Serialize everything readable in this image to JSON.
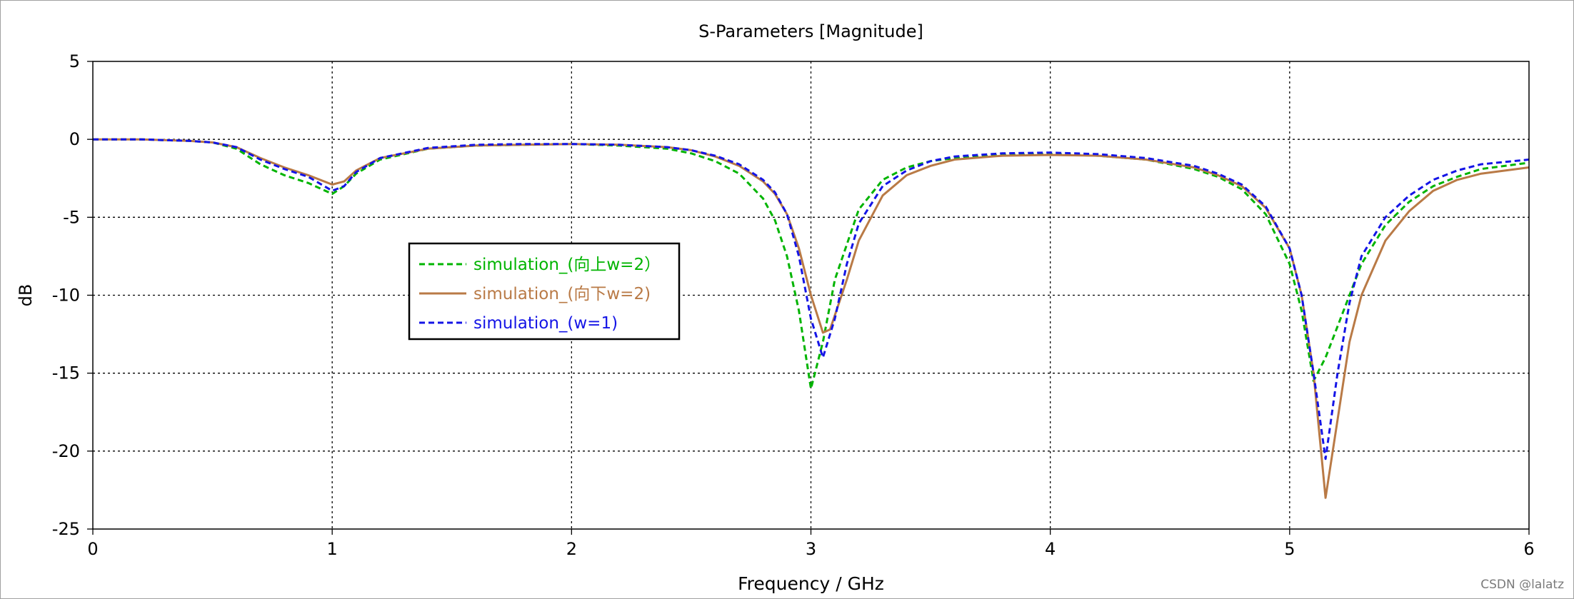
{
  "watermark": "CSDN @lalatz",
  "chart_data": {
    "type": "line",
    "title": "S-Parameters [Magnitude]",
    "xlabel": "Frequency / GHz",
    "ylabel": "dB",
    "xlim": [
      0,
      6
    ],
    "ylim": [
      -25,
      5
    ],
    "x_ticks": [
      0,
      1,
      2,
      3,
      4,
      5,
      6
    ],
    "y_ticks": [
      5,
      0,
      -5,
      -10,
      -15,
      -20,
      -25
    ],
    "grid": true,
    "legend_position": "center-left",
    "series": [
      {
        "name": "simulation_(向上w=2）",
        "color": "#00b400",
        "dash": "dashed",
        "x": [
          0,
          0.2,
          0.4,
          0.5,
          0.6,
          0.7,
          0.8,
          0.9,
          1.0,
          1.05,
          1.1,
          1.2,
          1.4,
          1.6,
          1.8,
          2.0,
          2.2,
          2.4,
          2.5,
          2.6,
          2.7,
          2.8,
          2.85,
          2.9,
          2.95,
          3.0,
          3.05,
          3.1,
          3.2,
          3.3,
          3.4,
          3.5,
          3.6,
          3.8,
          4.0,
          4.2,
          4.4,
          4.6,
          4.7,
          4.8,
          4.9,
          5.0,
          5.05,
          5.1,
          5.15,
          5.2,
          5.3,
          5.4,
          5.5,
          5.6,
          5.7,
          5.8,
          6.0
        ],
        "y": [
          0,
          0,
          -0.1,
          -0.2,
          -0.6,
          -1.6,
          -2.3,
          -2.8,
          -3.5,
          -3.0,
          -2.2,
          -1.3,
          -0.6,
          -0.4,
          -0.35,
          -0.3,
          -0.4,
          -0.6,
          -0.9,
          -1.4,
          -2.2,
          -3.8,
          -5.2,
          -7.5,
          -11.0,
          -16.0,
          -13.0,
          -9.0,
          -4.5,
          -2.6,
          -1.8,
          -1.4,
          -1.2,
          -1.0,
          -0.95,
          -1.05,
          -1.3,
          -1.9,
          -2.4,
          -3.2,
          -4.8,
          -8.0,
          -11.0,
          -15.5,
          -14.0,
          -12.0,
          -8.0,
          -5.5,
          -4.0,
          -3.0,
          -2.4,
          -1.9,
          -1.5
        ]
      },
      {
        "name": "simulation_(向下w=2)",
        "color": "#b97a46",
        "dash": "solid",
        "x": [
          0,
          0.2,
          0.4,
          0.5,
          0.6,
          0.7,
          0.8,
          0.9,
          1.0,
          1.05,
          1.1,
          1.2,
          1.4,
          1.6,
          1.8,
          2.0,
          2.2,
          2.4,
          2.5,
          2.6,
          2.7,
          2.8,
          2.85,
          2.9,
          2.95,
          3.0,
          3.05,
          3.08,
          3.15,
          3.2,
          3.3,
          3.4,
          3.5,
          3.6,
          3.8,
          4.0,
          4.2,
          4.4,
          4.6,
          4.7,
          4.8,
          4.9,
          5.0,
          5.05,
          5.1,
          5.15,
          5.2,
          5.25,
          5.3,
          5.4,
          5.5,
          5.6,
          5.7,
          5.8,
          6.0
        ],
        "y": [
          0,
          0,
          -0.1,
          -0.2,
          -0.5,
          -1.2,
          -1.8,
          -2.3,
          -2.9,
          -2.7,
          -2.0,
          -1.2,
          -0.6,
          -0.4,
          -0.35,
          -0.3,
          -0.35,
          -0.5,
          -0.7,
          -1.1,
          -1.7,
          -2.7,
          -3.5,
          -4.8,
          -7.0,
          -10.0,
          -12.4,
          -12.2,
          -9.0,
          -6.5,
          -3.6,
          -2.3,
          -1.7,
          -1.3,
          -1.05,
          -1.0,
          -1.05,
          -1.3,
          -1.8,
          -2.3,
          -3.0,
          -4.4,
          -7.0,
          -10.0,
          -15.0,
          -23.0,
          -18.0,
          -13.0,
          -10.0,
          -6.5,
          -4.6,
          -3.3,
          -2.6,
          -2.2,
          -1.8
        ]
      },
      {
        "name": "simulation_(w=1)",
        "color": "#1414e6",
        "dash": "dashed",
        "x": [
          0,
          0.2,
          0.4,
          0.5,
          0.6,
          0.7,
          0.8,
          0.9,
          1.0,
          1.05,
          1.1,
          1.2,
          1.4,
          1.6,
          1.8,
          2.0,
          2.2,
          2.4,
          2.5,
          2.6,
          2.7,
          2.8,
          2.85,
          2.9,
          2.95,
          3.0,
          3.05,
          3.1,
          3.15,
          3.2,
          3.3,
          3.4,
          3.5,
          3.6,
          3.8,
          4.0,
          4.2,
          4.4,
          4.6,
          4.7,
          4.8,
          4.9,
          5.0,
          5.05,
          5.1,
          5.15,
          5.2,
          5.25,
          5.3,
          5.4,
          5.5,
          5.6,
          5.7,
          5.8,
          6.0
        ],
        "y": [
          0,
          0,
          -0.1,
          -0.2,
          -0.5,
          -1.3,
          -1.9,
          -2.4,
          -3.3,
          -3.0,
          -2.1,
          -1.2,
          -0.55,
          -0.35,
          -0.3,
          -0.3,
          -0.35,
          -0.5,
          -0.7,
          -1.05,
          -1.6,
          -2.6,
          -3.4,
          -4.8,
          -7.5,
          -11.5,
          -14.0,
          -11.5,
          -8.0,
          -5.4,
          -3.0,
          -2.0,
          -1.4,
          -1.1,
          -0.9,
          -0.85,
          -0.95,
          -1.2,
          -1.7,
          -2.2,
          -2.9,
          -4.3,
          -7.0,
          -10.0,
          -15.0,
          -20.5,
          -15.0,
          -10.5,
          -7.5,
          -5.0,
          -3.6,
          -2.6,
          -2.0,
          -1.6,
          -1.3
        ]
      }
    ]
  }
}
